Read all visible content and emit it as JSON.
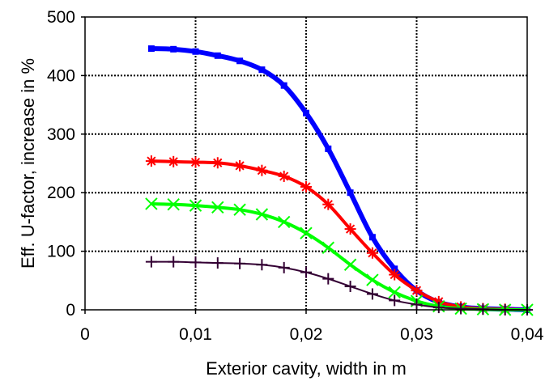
{
  "chart_data": {
    "type": "line",
    "title": "",
    "xlabel": "Exterior cavity, width in m",
    "ylabel": "Eff. U-factor, increase in %",
    "xlim": [
      0,
      0.04
    ],
    "ylim": [
      0,
      500
    ],
    "x_ticks": [
      0,
      0.01,
      0.02,
      0.03,
      0.04
    ],
    "x_tick_labels": [
      "0",
      "0,01",
      "0,02",
      "0,03",
      "0,04"
    ],
    "y_ticks": [
      0,
      100,
      200,
      300,
      400,
      500
    ],
    "y_tick_labels": [
      "0",
      "100",
      "200",
      "300",
      "400",
      "500"
    ],
    "grid": "dotted",
    "legend": "none",
    "series": [
      {
        "color": "#0000ff",
        "marker": "square",
        "x": [
          0.006,
          0.008,
          0.01,
          0.012,
          0.014,
          0.016,
          0.018,
          0.02,
          0.022,
          0.024,
          0.026,
          0.028,
          0.03,
          0.032,
          0.034,
          0.036,
          0.038,
          0.04
        ],
        "y": [
          446,
          445,
          441,
          434,
          425,
          410,
          383,
          336,
          275,
          200,
          124,
          70,
          33,
          13,
          5,
          2,
          1,
          0
        ]
      },
      {
        "color": "#ff0000",
        "marker": "asterisk",
        "x": [
          0.006,
          0.008,
          0.01,
          0.012,
          0.014,
          0.016,
          0.018,
          0.02,
          0.022,
          0.024,
          0.026,
          0.028,
          0.03,
          0.032,
          0.034,
          0.036,
          0.038,
          0.04
        ],
        "y": [
          254,
          253,
          252,
          251,
          246,
          238,
          228,
          210,
          180,
          138,
          97,
          60,
          33,
          14,
          5,
          2,
          1,
          0
        ]
      },
      {
        "color": "#00ff00",
        "marker": "x",
        "x": [
          0.006,
          0.008,
          0.01,
          0.012,
          0.014,
          0.016,
          0.018,
          0.02,
          0.022,
          0.024,
          0.026,
          0.028,
          0.03,
          0.032,
          0.034,
          0.036,
          0.038,
          0.04
        ],
        "y": [
          181,
          180,
          178,
          175,
          171,
          163,
          150,
          131,
          106,
          77,
          51,
          30,
          15,
          6,
          2,
          1,
          0,
          0
        ]
      },
      {
        "color": "#330033",
        "marker": "plus",
        "x": [
          0.006,
          0.008,
          0.01,
          0.012,
          0.014,
          0.016,
          0.018,
          0.02,
          0.022,
          0.024,
          0.026,
          0.028,
          0.03,
          0.032,
          0.034,
          0.036,
          0.038,
          0.04
        ],
        "y": [
          82,
          82,
          81,
          80,
          79,
          77,
          72,
          64,
          53,
          40,
          27,
          16,
          9,
          4,
          2,
          1,
          0,
          0
        ]
      }
    ]
  }
}
